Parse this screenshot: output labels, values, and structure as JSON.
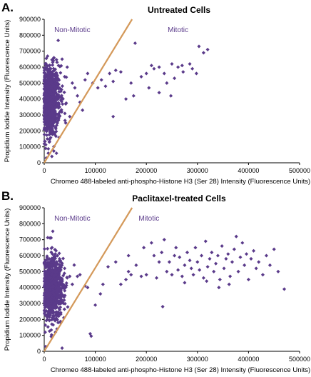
{
  "chart_data": [
    {
      "panel": "A.",
      "type": "scatter",
      "title": "Untreated Cells",
      "xlabel": "Chromeo 488-labeled anti-phospho-Histone H3 (Ser 28) Intensity (Fluorescence Units)",
      "ylabel": "Propidium Iodide Intensity (Fluorescence Units)",
      "xlim": [
        0,
        500000
      ],
      "ylim": [
        0,
        900000
      ],
      "xticks": [
        "0",
        "100000",
        "200000",
        "300000",
        "400000",
        "500000"
      ],
      "yticks": [
        "0",
        "100000",
        "200000",
        "300000",
        "400000",
        "500000",
        "600000",
        "700000",
        "800000",
        "900000"
      ],
      "grid": false,
      "annotations": [
        {
          "text": "Non-Mitotic",
          "x": 55000,
          "y": 820000
        },
        {
          "text": "Mitotic",
          "x": 262000,
          "y": 820000
        }
      ],
      "divider_line": {
        "x": [
          0,
          172000
        ],
        "y": [
          0,
          900000
        ]
      },
      "series": [
        {
          "marker_color": "#5a3a8a",
          "cluster": {
            "center_x": 8000,
            "spread_x": 13000,
            "center_y": 390000,
            "spread_y": 110000,
            "count": 900
          },
          "points": [
            [
              6000,
              150000
            ],
            [
              10000,
              130000
            ],
            [
              3000,
              90000
            ],
            [
              8000,
              60000
            ],
            [
              15000,
              40000
            ],
            [
              4000,
              30000
            ],
            [
              20000,
              320000
            ],
            [
              25000,
              280000
            ],
            [
              30000,
              350000
            ],
            [
              22000,
              560000
            ],
            [
              28000,
              610000
            ],
            [
              35000,
              650000
            ],
            [
              45000,
              600000
            ],
            [
              40000,
              540000
            ],
            [
              55000,
              500000
            ],
            [
              60000,
              470000
            ],
            [
              65000,
              420000
            ],
            [
              70000,
              380000
            ],
            [
              75000,
              330000
            ],
            [
              50000,
              290000
            ],
            [
              42000,
              250000
            ],
            [
              80000,
              520000
            ],
            [
              85000,
              560000
            ],
            [
              95000,
              500000
            ],
            [
              105000,
              470000
            ],
            [
              112000,
              520000
            ],
            [
              120000,
              480000
            ],
            [
              128000,
              560000
            ],
            [
              135000,
              510000
            ],
            [
              140000,
              580000
            ],
            [
              150000,
              570000
            ],
            [
              135000,
              290000
            ],
            [
              178000,
              750000
            ],
            [
              160000,
              400000
            ],
            [
              175000,
              420000
            ],
            [
              170000,
              500000
            ],
            [
              190000,
              540000
            ],
            [
              200000,
              560000
            ],
            [
              210000,
              610000
            ],
            [
              215000,
              590000
            ],
            [
              225000,
              600000
            ],
            [
              235000,
              560000
            ],
            [
              240000,
              500000
            ],
            [
              250000,
              620000
            ],
            [
              255000,
              530000
            ],
            [
              262000,
              600000
            ],
            [
              270000,
              610000
            ],
            [
              272000,
              570000
            ],
            [
              285000,
              620000
            ],
            [
              290000,
              590000
            ],
            [
              298000,
              560000
            ],
            [
              303000,
              730000
            ],
            [
              312000,
              690000
            ],
            [
              320000,
              710000
            ],
            [
              225000,
              440000
            ],
            [
              205000,
              470000
            ],
            [
              248000,
              420000
            ]
          ]
        }
      ]
    },
    {
      "panel": "B.",
      "type": "scatter",
      "title": "Paclitaxel-treated Cells",
      "xlabel": "Chromeo 488-labeled anti-phospho-Histone H3 (Ser 28) Intensity (Fluorescence Units)",
      "ylabel": "Propidium Iodide Intensity (Fluorescence Units)",
      "xlim": [
        0,
        500000
      ],
      "ylim": [
        0,
        900000
      ],
      "xticks": [
        "0",
        "100000",
        "200000",
        "300000",
        "400000",
        "500000"
      ],
      "yticks": [
        "0",
        "100000",
        "200000",
        "300000",
        "400000",
        "500000",
        "600000",
        "700000",
        "800000",
        "900000"
      ],
      "grid": false,
      "annotations": [
        {
          "text": "Non-Mitotic",
          "x": 55000,
          "y": 820000
        },
        {
          "text": "Mitotic",
          "x": 205000,
          "y": 820000
        }
      ],
      "divider_line": {
        "x": [
          0,
          172000
        ],
        "y": [
          0,
          900000
        ]
      },
      "series": [
        {
          "marker_color": "#5a3a8a",
          "cluster": {
            "center_x": 15000,
            "spread_x": 12000,
            "center_y": 400000,
            "spread_y": 100000,
            "count": 900
          },
          "points": [
            [
              20000,
              200000
            ],
            [
              15000,
              170000
            ],
            [
              25000,
              140000
            ],
            [
              22000,
              120000
            ],
            [
              35000,
              20000
            ],
            [
              3000,
              30000
            ],
            [
              90000,
              110000
            ],
            [
              92000,
              95000
            ],
            [
              30000,
              580000
            ],
            [
              35000,
              550000
            ],
            [
              40000,
              520000
            ],
            [
              45000,
              460000
            ],
            [
              50000,
              470000
            ],
            [
              55000,
              420000
            ],
            [
              65000,
              470000
            ],
            [
              70000,
              480000
            ],
            [
              80000,
              410000
            ],
            [
              85000,
              400000
            ],
            [
              100000,
              290000
            ],
            [
              110000,
              360000
            ],
            [
              115000,
              420000
            ],
            [
              125000,
              530000
            ],
            [
              140000,
              560000
            ],
            [
              150000,
              420000
            ],
            [
              160000,
              450000
            ],
            [
              165000,
              500000
            ],
            [
              170000,
              480000
            ],
            [
              165000,
              600000
            ],
            [
              180000,
              540000
            ],
            [
              190000,
              470000
            ],
            [
              195000,
              650000
            ],
            [
              200000,
              480000
            ],
            [
              210000,
              680000
            ],
            [
              215000,
              600000
            ],
            [
              220000,
              460000
            ],
            [
              225000,
              560000
            ],
            [
              230000,
              620000
            ],
            [
              235000,
              700000
            ],
            [
              232000,
              280000
            ],
            [
              240000,
              500000
            ],
            [
              245000,
              560000
            ],
            [
              250000,
              480000
            ],
            [
              255000,
              600000
            ],
            [
              258000,
              650000
            ],
            [
              262000,
              510000
            ],
            [
              265000,
              590000
            ],
            [
              270000,
              470000
            ],
            [
              275000,
              540000
            ],
            [
              280000,
              620000
            ],
            [
              285000,
              570000
            ],
            [
              288000,
              520000
            ],
            [
              292000,
              480000
            ],
            [
              296000,
              650000
            ],
            [
              300000,
              560000
            ],
            [
              304000,
              510000
            ],
            [
              308000,
              600000
            ],
            [
              312000,
              460000
            ],
            [
              316000,
              690000
            ],
            [
              320000,
              530000
            ],
            [
              324000,
              580000
            ],
            [
              328000,
              620000
            ],
            [
              332000,
              500000
            ],
            [
              336000,
              550000
            ],
            [
              340000,
              600000
            ],
            [
              344000,
              450000
            ],
            [
              348000,
              660000
            ],
            [
              352000,
              520000
            ],
            [
              356000,
              580000
            ],
            [
              360000,
              610000
            ],
            [
              364000,
              470000
            ],
            [
              368000,
              560000
            ],
            [
              372000,
              640000
            ],
            [
              376000,
              720000
            ],
            [
              380000,
              500000
            ],
            [
              384000,
              590000
            ],
            [
              388000,
              680000
            ],
            [
              392000,
              540000
            ],
            [
              396000,
              610000
            ],
            [
              400000,
              450000
            ],
            [
              405000,
              580000
            ],
            [
              410000,
              630000
            ],
            [
              415000,
              520000
            ],
            [
              420000,
              560000
            ],
            [
              428000,
              480000
            ],
            [
              435000,
              600000
            ],
            [
              442000,
              540000
            ],
            [
              450000,
              640000
            ],
            [
              458000,
              500000
            ],
            [
              470000,
              390000
            ],
            [
              275000,
              430000
            ],
            [
              318000,
              440000
            ],
            [
              342000,
              400000
            ],
            [
              362000,
              420000
            ]
          ]
        }
      ]
    }
  ]
}
